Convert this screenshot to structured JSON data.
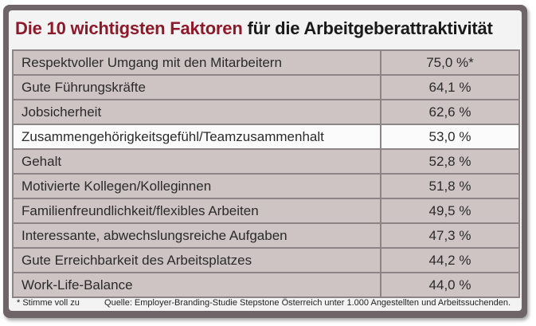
{
  "title": {
    "highlight": "Die 10 wichtigsten Faktoren",
    "rest": "für die Arbeitgeberattraktivität"
  },
  "chart_data": {
    "type": "table",
    "title": "Die 10 wichtigsten Faktoren für die Arbeitgeberattraktivität",
    "rows": [
      {
        "label": "Respektvoller Umgang mit den Mitarbeitern",
        "value": 75.0,
        "display": "75,0 %*"
      },
      {
        "label": "Gute Führungskräfte",
        "value": 64.1,
        "display": "64,1 %"
      },
      {
        "label": "Jobsicherheit",
        "value": 62.6,
        "display": "62,6 %"
      },
      {
        "label": "Zusammengehörigkeitsgefühl/Teamzusammenhalt",
        "value": 53.0,
        "display": "53,0 %"
      },
      {
        "label": "Gehalt",
        "value": 52.8,
        "display": "52,8 %"
      },
      {
        "label": "Motivierte Kollegen/Kolleginnen",
        "value": 51.8,
        "display": "51,8 %"
      },
      {
        "label": "Familienfreundlichkeit/flexibles Arbeiten",
        "value": 49.5,
        "display": "49,5 %"
      },
      {
        "label": "Interessante, abwechslungsreiche Aufgaben",
        "value": 47.3,
        "display": "47,3 %"
      },
      {
        "label": "Gute Erreichbarkeit des Arbeitsplatzes",
        "value": 44.2,
        "display": "44,2 %"
      },
      {
        "label": "Work-Life-Balance",
        "value": 44.0,
        "display": "44,0 %"
      }
    ],
    "unit": "%"
  },
  "footnote": "* Stimme voll zu",
  "source": "Quelle: Employer-Branding-Studie Stepstone Österreich unter 1.000 Angestellten und Arbeitssuchenden.",
  "colors": {
    "accent": "#8c1a2b",
    "frame": "#6f6568",
    "row_shaded": "#cdc4c3",
    "row_plain": "#fbfbfb"
  }
}
